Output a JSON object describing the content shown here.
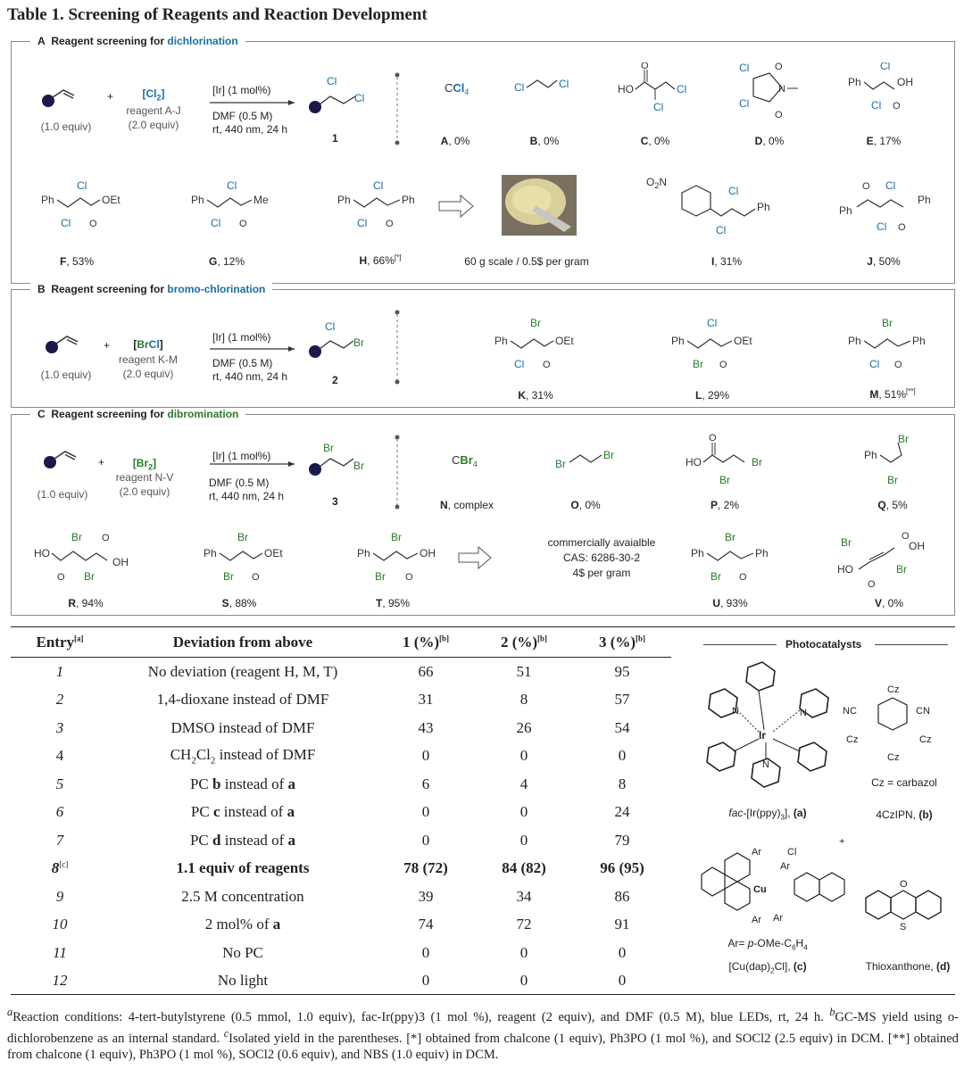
{
  "title": "Table 1. Screening of Reagents and Reaction Development",
  "colors": {
    "chlorine": "#1a6fa0",
    "bromine": "#2a7a2a",
    "substrate": "#1a1a4a"
  },
  "sectionA": {
    "letter": "A",
    "prefix": "Reagent screening for ",
    "highlight": "dichlorination",
    "substrate_equiv": "(1.0 equiv)",
    "plus": "+",
    "reagent_formula": "[Cl2]",
    "reagent_line": "reagent A-J",
    "reagent_equiv": "(2.0 equiv)",
    "cond1": "[Ir] (1 mol%)",
    "cond2": "DMF (0.5 M)",
    "cond3": "rt, 440 nm, 24 h",
    "product_number": "1",
    "reagents": [
      {
        "letter": "A",
        "yield": "0%"
      },
      {
        "letter": "B",
        "yield": "0%"
      },
      {
        "letter": "C",
        "yield": "0%"
      },
      {
        "letter": "D",
        "yield": "0%"
      },
      {
        "letter": "E",
        "yield": "17%"
      },
      {
        "letter": "F",
        "yield": "53%"
      },
      {
        "letter": "G",
        "yield": "12%"
      },
      {
        "letter": "H",
        "yield": "66%",
        "note": "[*]"
      },
      {
        "letter": "I",
        "yield": "31%"
      },
      {
        "letter": "J",
        "yield": "50%"
      }
    ],
    "scale_note": "60 g scale / 0.5$ per gram"
  },
  "sectionB": {
    "letter": "B",
    "prefix": "Reagent screening for ",
    "highlight": "bromo-chlorination",
    "substrate_equiv": "(1.0 equiv)",
    "plus": "+",
    "reagent_formula": "[BrCl]",
    "reagent_line": "reagent K-M",
    "reagent_equiv": "(2.0 equiv)",
    "cond1": "[Ir] (1 mol%)",
    "cond2": "DMF (0.5 M)",
    "cond3": "rt, 440 nm, 24 h",
    "product_number": "2",
    "reagents": [
      {
        "letter": "K",
        "yield": "31%"
      },
      {
        "letter": "L",
        "yield": "29%"
      },
      {
        "letter": "M",
        "yield": "51%",
        "note": "[**]"
      }
    ]
  },
  "sectionC": {
    "letter": "C",
    "prefix": "Reagent screening for ",
    "highlight": "dibromination",
    "substrate_equiv": "(1.0 equiv)",
    "plus": "+",
    "reagent_formula": "[Br2]",
    "reagent_line": "reagent N-V",
    "reagent_equiv": "(2.0 equiv)",
    "cond1": "[Ir] (1 mol%)",
    "cond2": "DMF (0.5 M)",
    "cond3": "rt, 440 nm, 24 h",
    "product_number": "3",
    "reagents": [
      {
        "letter": "N",
        "yield": "complex"
      },
      {
        "letter": "O",
        "yield": "0%"
      },
      {
        "letter": "P",
        "yield": "2%"
      },
      {
        "letter": "Q",
        "yield": "5%"
      },
      {
        "letter": "R",
        "yield": "94%"
      },
      {
        "letter": "S",
        "yield": "88%"
      },
      {
        "letter": "T",
        "yield": "95%"
      },
      {
        "letter": "U",
        "yield": "93%"
      },
      {
        "letter": "V",
        "yield": "0%"
      }
    ],
    "commercial1": "commercially avaialble",
    "commercial2": "CAS: 6286-30-2",
    "commercial3": "4$ per gram"
  },
  "table": {
    "headers": [
      "Entry",
      "Deviation from above",
      "1 (%)",
      "2 (%)",
      "3 (%)"
    ],
    "header_notes": [
      "[a]",
      "",
      "[b]",
      "[b]",
      "[b]"
    ],
    "rows": [
      {
        "entry": "1",
        "deviation": "No deviation (reagent H, M, T)",
        "y1": "66",
        "y2": "51",
        "y3": "95"
      },
      {
        "entry": "2",
        "deviation": "1,4-dioxane instead of DMF",
        "y1": "31",
        "y2": "8",
        "y3": "57"
      },
      {
        "entry": "3",
        "deviation": "DMSO instead of DMF",
        "y1": "43",
        "y2": "26",
        "y3": "54"
      },
      {
        "entry": "4",
        "deviation": "CH2Cl2 instead of DMF",
        "y1": "0",
        "y2": "0",
        "y3": "0"
      },
      {
        "entry": "5",
        "deviation": "PC b instead of a",
        "y1": "6",
        "y2": "4",
        "y3": "8"
      },
      {
        "entry": "6",
        "deviation": "PC c instead of a",
        "y1": "0",
        "y2": "0",
        "y3": "24"
      },
      {
        "entry": "7",
        "deviation": "PC d instead of a",
        "y1": "0",
        "y2": "0",
        "y3": "79"
      },
      {
        "entry": "8",
        "entry_note": "[c]",
        "deviation": "1.1 equiv of reagents",
        "y1": "78 (72)",
        "y2": "84 (82)",
        "y3": "96 (95)"
      },
      {
        "entry": "9",
        "deviation": "2.5 M concentration",
        "y1": "39",
        "y2": "34",
        "y3": "86"
      },
      {
        "entry": "10",
        "deviation": "2 mol% of a",
        "y1": "74",
        "y2": "72",
        "y3": "91"
      },
      {
        "entry": "11",
        "deviation": "No PC",
        "y1": "0",
        "y2": "0",
        "y3": "0"
      },
      {
        "entry": "12",
        "deviation": "No light",
        "y1": "0",
        "y2": "0",
        "y3": "0"
      }
    ]
  },
  "photocatalysts": {
    "heading": "Photocatalysts",
    "a_label": "fac-[Ir(ppy)3], (a)",
    "b_label": "4CzIPN, (b)",
    "b_note": "Cz = carbazol",
    "c_label": "[Cu(dap)2Cl], (c)",
    "c_note": "Ar= p-OMe-C6H4",
    "d_label": "Thioxanthone, (d)"
  },
  "footnotes": {
    "a": "Reaction conditions: 4-tert-butylstyrene (0.5 mmol, 1.0 equiv), fac-Ir(ppy)3 (1 mol %), reagent (2 equiv), and DMF (0.5 M), blue LEDs, rt, 24 h.",
    "b": "GC-MS yield using o-dichlorobenzene as an internal standard.",
    "c": "Isolated yield in the parentheses.",
    "star": "[*] obtained from chalcone (1 equiv), Ph3PO (1 mol %), and SOCl2 (2.5 equiv) in DCM.",
    "dstar": "[**] obtained from chalcone (1 equiv), Ph3PO (1 mol %), SOCl2 (0.6 equiv), and NBS (1.0 equiv) in DCM."
  }
}
